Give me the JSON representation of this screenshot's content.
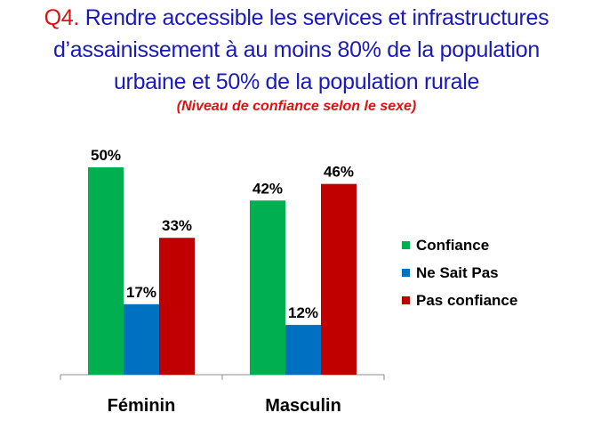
{
  "title": {
    "prefix": "Q4.",
    "line1": " Rendre accessible les services et infrastructures",
    "line2": "d’assainissement à au moins 80% de la population",
    "line3": "urbaine et 50% de la population rurale"
  },
  "subtitle": "(Niveau de confiance selon le sexe)",
  "colors": {
    "title": "#1a1ab8",
    "accent": "#e01010"
  },
  "chart_data": {
    "type": "bar",
    "categories": [
      "Féminin",
      "Masculin"
    ],
    "series": [
      {
        "name": "Confiance",
        "values": [
          50,
          42
        ],
        "color": "#00b050"
      },
      {
        "name": "Ne Sait Pas",
        "values": [
          17,
          12
        ],
        "color": "#0070c0"
      },
      {
        "name": "Pas confiance",
        "values": [
          33,
          46
        ],
        "color": "#c00000"
      }
    ],
    "value_labels": [
      [
        "50%",
        "42%"
      ],
      [
        "17%",
        "12%"
      ],
      [
        "33%",
        "46%"
      ]
    ],
    "ylim": [
      0,
      50
    ],
    "grid": false,
    "legend": "right"
  }
}
